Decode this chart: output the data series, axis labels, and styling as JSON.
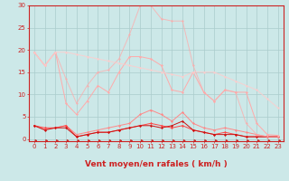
{
  "x": [
    0,
    1,
    2,
    3,
    4,
    5,
    6,
    7,
    8,
    9,
    10,
    11,
    12,
    13,
    14,
    15,
    16,
    17,
    18,
    19,
    20,
    21,
    22,
    23
  ],
  "series": [
    {
      "color": "#ff8888",
      "alpha": 1.0,
      "marker": "D",
      "markersize": 1.5,
      "linewidth": 0.7,
      "y": [
        3.0,
        2.2,
        2.5,
        3.0,
        1.0,
        1.5,
        2.0,
        2.5,
        3.0,
        3.5,
        5.5,
        6.5,
        5.5,
        4.0,
        6.0,
        3.5,
        2.5,
        2.0,
        2.5,
        2.0,
        1.5,
        1.0,
        0.5,
        0.5
      ]
    },
    {
      "color": "#ff4444",
      "alpha": 1.0,
      "marker": "D",
      "markersize": 1.5,
      "linewidth": 0.7,
      "y": [
        3.0,
        2.5,
        2.5,
        3.0,
        0.5,
        1.0,
        1.5,
        1.5,
        2.0,
        2.5,
        3.0,
        3.5,
        3.0,
        2.5,
        3.0,
        2.0,
        1.5,
        1.0,
        1.5,
        1.0,
        0.5,
        0.5,
        0.5,
        0.5
      ]
    },
    {
      "color": "#cc1111",
      "alpha": 1.0,
      "marker": "D",
      "markersize": 1.5,
      "linewidth": 0.7,
      "y": [
        3.0,
        2.0,
        2.5,
        2.5,
        0.5,
        1.0,
        1.5,
        1.5,
        2.0,
        2.5,
        3.0,
        3.0,
        2.5,
        3.0,
        4.0,
        2.0,
        1.5,
        1.0,
        1.0,
        1.0,
        0.5,
        0.5,
        0.5,
        0.5
      ]
    },
    {
      "color": "#ffaaaa",
      "alpha": 1.0,
      "marker": "D",
      "markersize": 1.5,
      "linewidth": 0.7,
      "y": [
        19.5,
        16.5,
        19.5,
        8.0,
        5.5,
        8.5,
        12.0,
        10.5,
        15.0,
        18.5,
        18.5,
        18.0,
        16.5,
        11.0,
        10.5,
        15.0,
        10.5,
        8.5,
        11.0,
        10.5,
        10.5,
        3.5,
        1.0,
        0.8
      ]
    },
    {
      "color": "#ffaaaa",
      "alpha": 0.75,
      "marker": "D",
      "markersize": 1.5,
      "linewidth": 0.7,
      "y": [
        19.5,
        16.5,
        19.5,
        13.5,
        8.0,
        12.0,
        15.0,
        15.5,
        18.0,
        23.5,
        30.0,
        30.0,
        27.0,
        26.5,
        26.5,
        16.5,
        10.5,
        8.5,
        11.0,
        10.5,
        3.5,
        1.0,
        0.5,
        0.5
      ]
    },
    {
      "color": "#ffcccc",
      "alpha": 0.85,
      "marker": "D",
      "markersize": 1.5,
      "linewidth": 0.7,
      "y": [
        19.5,
        16.5,
        19.5,
        19.5,
        19.0,
        18.5,
        18.0,
        17.5,
        17.0,
        16.5,
        16.0,
        15.5,
        15.0,
        14.5,
        14.0,
        15.0,
        15.0,
        15.0,
        14.0,
        13.0,
        12.0,
        11.0,
        9.0,
        7.0
      ]
    }
  ],
  "xlabel": "Vent moyen/en rafales ( km/h )",
  "ylim": [
    0,
    30
  ],
  "xlim_min": -0.5,
  "xlim_max": 23.5,
  "yticks": [
    0,
    5,
    10,
    15,
    20,
    25,
    30
  ],
  "xticks": [
    0,
    1,
    2,
    3,
    4,
    5,
    6,
    7,
    8,
    9,
    10,
    11,
    12,
    13,
    14,
    15,
    16,
    17,
    18,
    19,
    20,
    21,
    22,
    23
  ],
  "bg_color": "#cce8e8",
  "grid_color": "#aacccc",
  "axis_color": "#cc2222",
  "tick_color": "#cc2222",
  "xlabel_color": "#cc2222",
  "tick_fontsize": 5,
  "xlabel_fontsize": 6.5,
  "arrow_color": "#cc2222"
}
